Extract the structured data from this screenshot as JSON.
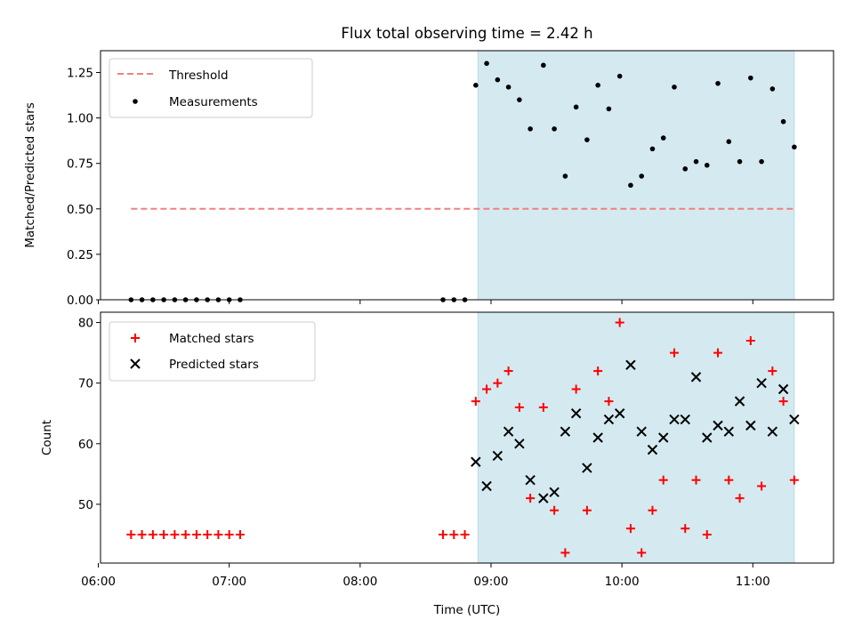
{
  "chart_data": [
    {
      "type": "scatter",
      "title": "Flux total observing time = 2.42 h",
      "xlabel": "",
      "ylabel": "Matched/Predicted stars",
      "xlim": [
        "06:01",
        "11:37"
      ],
      "ylim": [
        0,
        1.37
      ],
      "yticks": [
        "0.00",
        "0.25",
        "0.50",
        "0.75",
        "1.00",
        "1.25"
      ],
      "legend": "top-left",
      "shaded_interval": {
        "start": "08:54",
        "end": "11:19",
        "color": "#d4eaf0"
      },
      "threshold": {
        "name": "Threshold",
        "value": 0.5,
        "x_start": "06:15",
        "x_end": "11:19",
        "color": "#f08080"
      },
      "series": [
        {
          "name": "Measurements",
          "color": "#000000",
          "marker": "dot",
          "points": [
            [
              "06:15",
              0
            ],
            [
              "06:20",
              0
            ],
            [
              "06:25",
              0
            ],
            [
              "06:30",
              0
            ],
            [
              "06:35",
              0
            ],
            [
              "06:40",
              0
            ],
            [
              "06:45",
              0
            ],
            [
              "06:50",
              0
            ],
            [
              "06:55",
              0
            ],
            [
              "07:00",
              0
            ],
            [
              "07:05",
              0
            ],
            [
              "08:38",
              0
            ],
            [
              "08:43",
              0
            ],
            [
              "08:48",
              0
            ],
            [
              "08:53",
              1.18
            ],
            [
              "08:58",
              1.3
            ],
            [
              "09:03",
              1.21
            ],
            [
              "09:08",
              1.17
            ],
            [
              "09:13",
              1.1
            ],
            [
              "09:18",
              0.94
            ],
            [
              "09:24",
              1.29
            ],
            [
              "09:29",
              0.94
            ],
            [
              "09:34",
              0.68
            ],
            [
              "09:39",
              1.06
            ],
            [
              "09:44",
              0.88
            ],
            [
              "09:49",
              1.18
            ],
            [
              "09:54",
              1.05
            ],
            [
              "09:59",
              1.23
            ],
            [
              "10:04",
              0.63
            ],
            [
              "10:09",
              0.68
            ],
            [
              "10:14",
              0.83
            ],
            [
              "10:19",
              0.89
            ],
            [
              "10:24",
              1.17
            ],
            [
              "10:29",
              0.72
            ],
            [
              "10:34",
              0.76
            ],
            [
              "10:39",
              0.74
            ],
            [
              "10:44",
              1.19
            ],
            [
              "10:49",
              0.87
            ],
            [
              "10:54",
              0.76
            ],
            [
              "10:59",
              1.22
            ],
            [
              "11:04",
              0.76
            ],
            [
              "11:09",
              1.16
            ],
            [
              "11:14",
              0.98
            ],
            [
              "11:19",
              0.84
            ]
          ]
        }
      ]
    },
    {
      "type": "scatter",
      "title": "",
      "xlabel": "Time (UTC)",
      "ylabel": "Count",
      "xlim": [
        "06:01",
        "11:37"
      ],
      "ylim": [
        40.3,
        81.7
      ],
      "xticks": [
        "06:00",
        "07:00",
        "08:00",
        "09:00",
        "10:00",
        "11:00"
      ],
      "yticks": [
        "50",
        "60",
        "70",
        "80"
      ],
      "legend": "top-left",
      "shaded_interval": {
        "start": "08:54",
        "end": "11:19",
        "color": "#d4eaf0"
      },
      "series": [
        {
          "name": "Matched stars",
          "color": "#ff0000",
          "marker": "plus",
          "points": [
            [
              "06:15",
              45
            ],
            [
              "06:20",
              45
            ],
            [
              "06:25",
              45
            ],
            [
              "06:30",
              45
            ],
            [
              "06:35",
              45
            ],
            [
              "06:40",
              45
            ],
            [
              "06:45",
              45
            ],
            [
              "06:50",
              45
            ],
            [
              "06:55",
              45
            ],
            [
              "07:00",
              45
            ],
            [
              "07:05",
              45
            ],
            [
              "08:38",
              45
            ],
            [
              "08:43",
              45
            ],
            [
              "08:48",
              45
            ],
            [
              "08:53",
              67
            ],
            [
              "08:58",
              69
            ],
            [
              "09:03",
              70
            ],
            [
              "09:08",
              72
            ],
            [
              "09:13",
              66
            ],
            [
              "09:18",
              51
            ],
            [
              "09:24",
              66
            ],
            [
              "09:29",
              49
            ],
            [
              "09:34",
              42
            ],
            [
              "09:39",
              69
            ],
            [
              "09:44",
              49
            ],
            [
              "09:49",
              72
            ],
            [
              "09:54",
              67
            ],
            [
              "09:59",
              80
            ],
            [
              "10:04",
              46
            ],
            [
              "10:09",
              42
            ],
            [
              "10:14",
              49
            ],
            [
              "10:19",
              54
            ],
            [
              "10:24",
              75
            ],
            [
              "10:29",
              46
            ],
            [
              "10:34",
              54
            ],
            [
              "10:39",
              45
            ],
            [
              "10:44",
              75
            ],
            [
              "10:49",
              54
            ],
            [
              "10:54",
              51
            ],
            [
              "10:59",
              77
            ],
            [
              "11:04",
              53
            ],
            [
              "11:09",
              72
            ],
            [
              "11:14",
              67
            ],
            [
              "11:19",
              54
            ]
          ]
        },
        {
          "name": "Predicted stars",
          "color": "#000000",
          "marker": "x",
          "points": [
            [
              "08:53",
              57
            ],
            [
              "08:58",
              53
            ],
            [
              "09:03",
              58
            ],
            [
              "09:08",
              62
            ],
            [
              "09:13",
              60
            ],
            [
              "09:18",
              54
            ],
            [
              "09:24",
              51
            ],
            [
              "09:29",
              52
            ],
            [
              "09:34",
              62
            ],
            [
              "09:39",
              65
            ],
            [
              "09:44",
              56
            ],
            [
              "09:49",
              61
            ],
            [
              "09:54",
              64
            ],
            [
              "09:59",
              65
            ],
            [
              "10:04",
              73
            ],
            [
              "10:09",
              62
            ],
            [
              "10:14",
              59
            ],
            [
              "10:19",
              61
            ],
            [
              "10:24",
              64
            ],
            [
              "10:29",
              64
            ],
            [
              "10:34",
              71
            ],
            [
              "10:39",
              61
            ],
            [
              "10:44",
              63
            ],
            [
              "10:49",
              62
            ],
            [
              "10:54",
              67
            ],
            [
              "10:59",
              63
            ],
            [
              "11:04",
              70
            ],
            [
              "11:09",
              62
            ],
            [
              "11:14",
              69
            ],
            [
              "11:19",
              64
            ]
          ]
        }
      ]
    }
  ]
}
